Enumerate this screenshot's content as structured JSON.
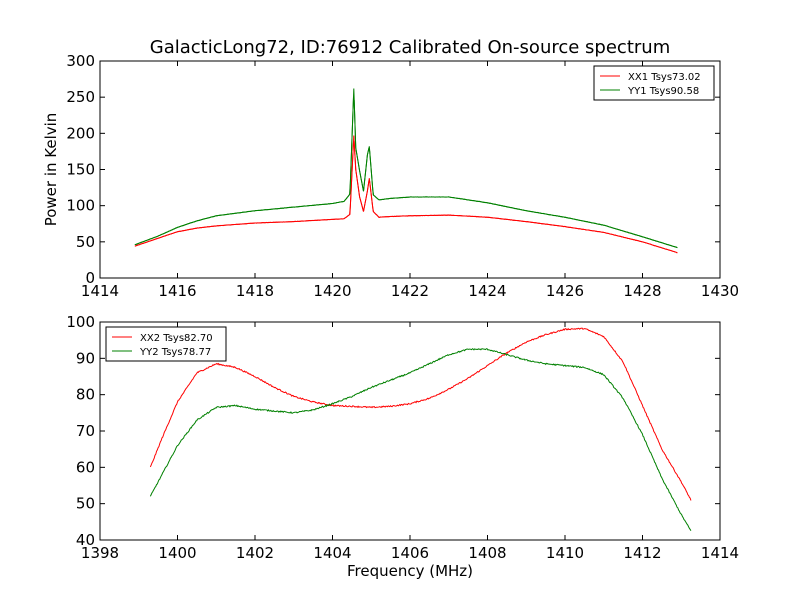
{
  "chart_data": [
    {
      "type": "line",
      "title": "GalacticLong72, ID:76912 Calibrated On-source spectrum",
      "xlabel": "",
      "ylabel": "Power in Kelvin",
      "xlim": [
        1414,
        1430
      ],
      "ylim": [
        0,
        300
      ],
      "xticks": [
        "1414",
        "1416",
        "1418",
        "1420",
        "1422",
        "1424",
        "1426",
        "1428",
        "1430"
      ],
      "yticks": [
        "0",
        "50",
        "100",
        "150",
        "200",
        "250",
        "300"
      ],
      "grid": false,
      "legend_position": "top-right",
      "series": [
        {
          "name": "XX1 Tsys73.02",
          "color": "#ff0000",
          "x": [
            1414.9,
            1415.5,
            1416.0,
            1416.5,
            1417.0,
            1418.0,
            1419.0,
            1420.0,
            1420.3,
            1420.45,
            1420.55,
            1420.6,
            1420.7,
            1420.8,
            1420.9,
            1420.95,
            1421.05,
            1421.2,
            1421.5,
            1422.0,
            1423.0,
            1424.0,
            1425.0,
            1426.0,
            1427.0,
            1428.0,
            1428.9
          ],
          "y": [
            44,
            55,
            64,
            69,
            72,
            76,
            78,
            81,
            82,
            88,
            197,
            150,
            112,
            92,
            120,
            138,
            92,
            84,
            85,
            86,
            87,
            84,
            78,
            71,
            63,
            50,
            35
          ]
        },
        {
          "name": "YY1 Tsys90.58",
          "color": "#008000",
          "x": [
            1414.9,
            1415.5,
            1416.0,
            1416.5,
            1417.0,
            1418.0,
            1419.0,
            1420.0,
            1420.3,
            1420.45,
            1420.55,
            1420.6,
            1420.7,
            1420.8,
            1420.9,
            1420.95,
            1421.05,
            1421.2,
            1421.5,
            1422.0,
            1423.0,
            1424.0,
            1425.0,
            1426.0,
            1427.0,
            1428.0,
            1428.9
          ],
          "y": [
            46,
            58,
            70,
            79,
            86,
            93,
            98,
            103,
            106,
            116,
            262,
            180,
            148,
            120,
            170,
            182,
            115,
            108,
            110,
            112,
            112,
            104,
            93,
            84,
            73,
            57,
            42
          ]
        }
      ]
    },
    {
      "type": "line",
      "title": "",
      "xlabel": "Frequency (MHz)",
      "ylabel": "",
      "xlim": [
        1398,
        1414
      ],
      "ylim": [
        40,
        100
      ],
      "xticks": [
        "1398",
        "1400",
        "1402",
        "1404",
        "1406",
        "1408",
        "1410",
        "1412",
        "1414"
      ],
      "yticks": [
        "40",
        "50",
        "60",
        "70",
        "80",
        "90",
        "100"
      ],
      "grid": false,
      "legend_position": "top-left",
      "series": [
        {
          "name": "XX2 Tsys82.70",
          "color": "#ff0000",
          "x": [
            1399.3,
            1399.6,
            1400.0,
            1400.5,
            1401.0,
            1401.5,
            1402.0,
            1402.5,
            1403.0,
            1403.5,
            1404.0,
            1404.5,
            1405.0,
            1405.5,
            1406.0,
            1406.5,
            1407.0,
            1407.5,
            1408.0,
            1408.5,
            1409.0,
            1409.5,
            1410.0,
            1410.5,
            1411.0,
            1411.5,
            1412.0,
            1412.5,
            1413.0,
            1413.25
          ],
          "y": [
            60,
            68,
            78,
            86,
            88.5,
            87.5,
            85,
            82,
            79.5,
            78,
            77,
            76.8,
            76.5,
            76.8,
            77.5,
            79,
            81.5,
            84.5,
            88,
            91.5,
            94.5,
            96.5,
            98,
            98.2,
            96,
            89,
            77,
            65,
            56,
            51
          ]
        },
        {
          "name": "YY2 Tsys78.77",
          "color": "#008000",
          "x": [
            1399.3,
            1399.6,
            1400.0,
            1400.5,
            1401.0,
            1401.5,
            1402.0,
            1402.5,
            1403.0,
            1403.5,
            1404.0,
            1404.5,
            1405.0,
            1405.5,
            1406.0,
            1406.5,
            1407.0,
            1407.5,
            1408.0,
            1408.5,
            1409.0,
            1409.5,
            1410.0,
            1410.5,
            1411.0,
            1411.5,
            1412.0,
            1412.5,
            1413.0,
            1413.25
          ],
          "y": [
            52,
            58,
            66,
            73,
            76.5,
            77,
            76,
            75.5,
            75,
            75.8,
            77.5,
            79.5,
            82,
            84,
            86,
            88.5,
            91,
            92.5,
            92.5,
            91,
            89.5,
            88.5,
            88,
            87.5,
            85.5,
            79,
            69,
            57,
            47,
            42.5
          ]
        }
      ]
    }
  ]
}
